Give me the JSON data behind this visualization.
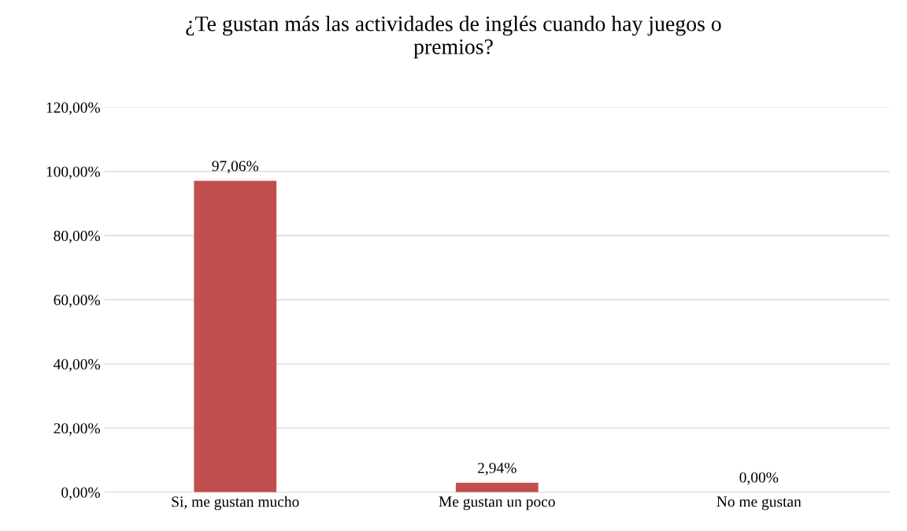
{
  "chart_data": {
    "type": "bar",
    "title": "¿Te gustan más las actividades de inglés cuando hay juegos o\npremios?",
    "categories": [
      "Si, me gustan mucho",
      "Me gustan un poco",
      "No me gustan"
    ],
    "values": [
      97.06,
      2.94,
      0.0
    ],
    "value_labels": [
      "97,06%",
      "2,94%",
      "0,00%"
    ],
    "color": "#c0504d",
    "ylim": [
      0,
      120
    ],
    "yticks": [
      {
        "value": 0,
        "label": "0,00%"
      },
      {
        "value": 20,
        "label": "20,00%"
      },
      {
        "value": 40,
        "label": "40,00%"
      },
      {
        "value": 60,
        "label": "60,00%"
      },
      {
        "value": 80,
        "label": "80,00%"
      },
      {
        "value": 100,
        "label": "100,00%"
      },
      {
        "value": 120,
        "label": "120,00%"
      }
    ],
    "grid": "y",
    "legend": false
  }
}
